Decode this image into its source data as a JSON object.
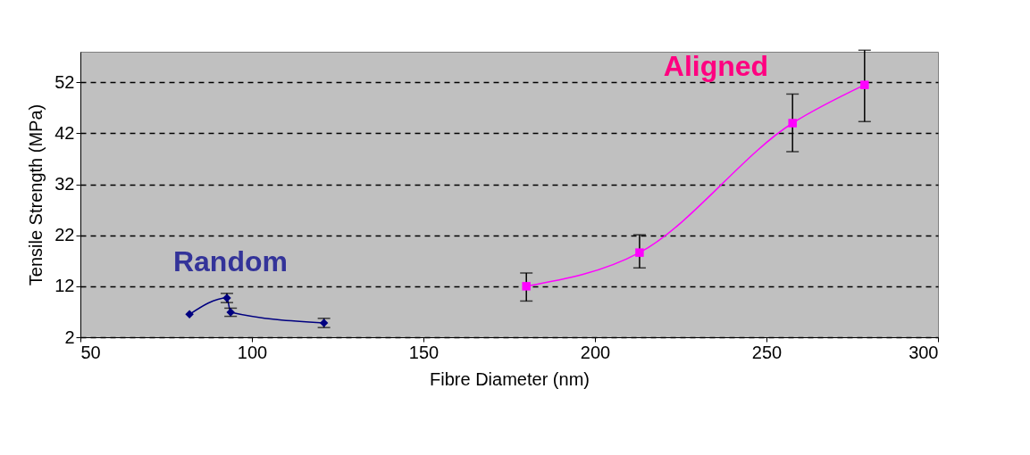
{
  "chart_data": {
    "type": "line",
    "xlabel": "Fibre Diameter (nm)",
    "ylabel": "Tensile Strength (MPa)",
    "xlim": [
      50,
      300
    ],
    "xticks": [
      50,
      100,
      150,
      200,
      250,
      300
    ],
    "ylim": [
      2,
      58
    ],
    "yticks": [
      2,
      12,
      22,
      32,
      42,
      52
    ],
    "grid": "y",
    "line_style": "solid",
    "series": [
      {
        "name": "Random",
        "color": "#000080",
        "marker": "diamond",
        "x": [
          81.8,
          92.7,
          93.8,
          121
        ],
        "values": [
          6.5,
          9.7,
          6.9,
          4.8
        ],
        "errors": [
          null,
          0.9,
          0.8,
          0.9
        ]
      },
      {
        "name": "Aligned",
        "color": "#ff00ff",
        "marker": "square",
        "x": [
          180,
          213,
          257.6,
          278.6
        ],
        "values": [
          12,
          18.6,
          44,
          51.5
        ],
        "errors": [
          [
            9.1,
            14.6
          ],
          [
            15.6,
            22.1
          ],
          [
            38.4,
            49.7
          ],
          [
            44.3,
            58.3
          ]
        ]
      }
    ]
  }
}
